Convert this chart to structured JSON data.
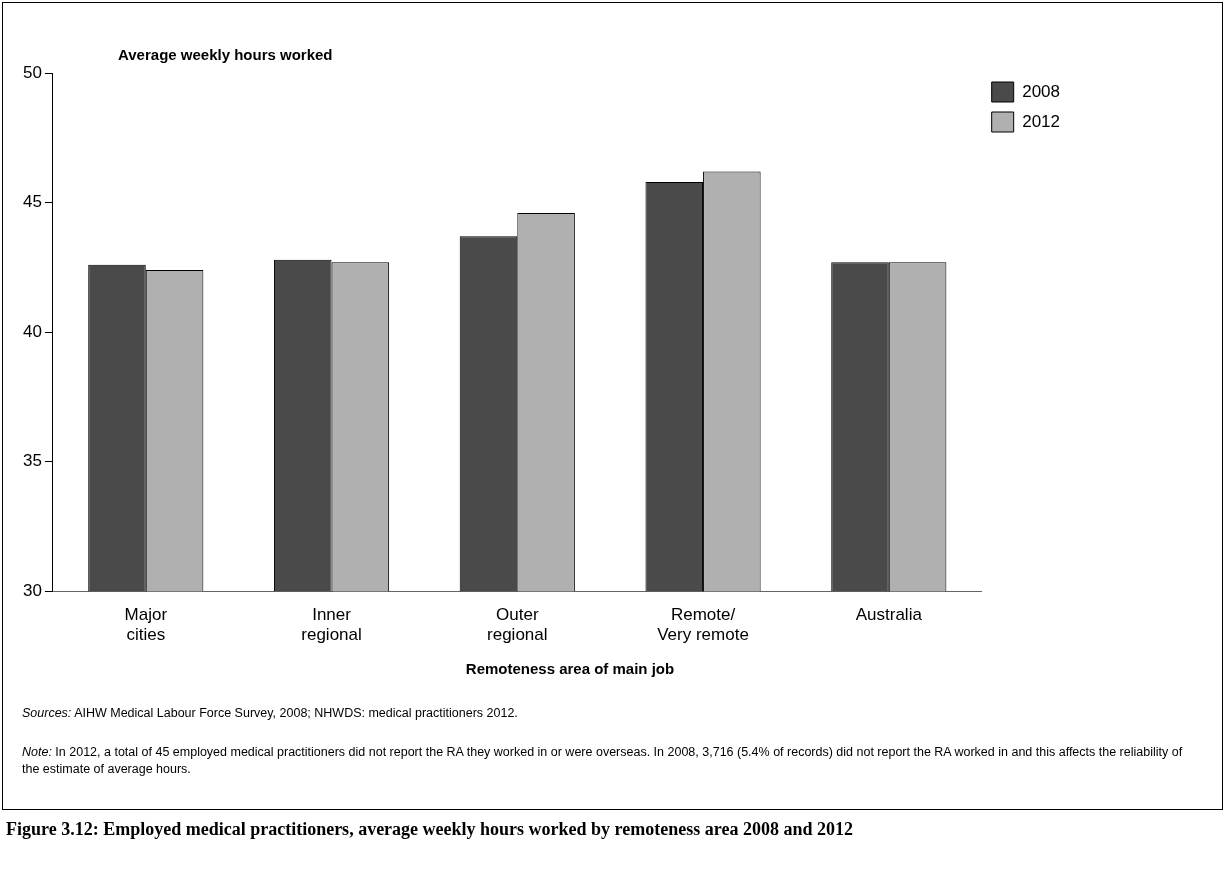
{
  "chart_data": {
    "type": "bar",
    "title": "Figure 3.12: Employed medical practitioners, average weekly hours worked by remoteness area 2008 and 2012",
    "ylabel": "Average weekly hours worked",
    "xlabel": "Remoteness area of main job",
    "categories": [
      "Major cities",
      "Inner regional",
      "Outer regional",
      "Remote/Very remote",
      "Australia"
    ],
    "series": [
      {
        "name": "2008",
        "color": "#4a4a4a",
        "values": [
          42.6,
          42.8,
          43.7,
          45.8,
          42.7
        ]
      },
      {
        "name": "2012",
        "color": "#b0b0b0",
        "values": [
          42.4,
          42.7,
          44.6,
          46.2,
          42.7
        ]
      }
    ],
    "ylim": [
      30,
      50
    ],
    "yticks": [
      30,
      35,
      40,
      45,
      50
    ],
    "grid": false,
    "legend": "top right",
    "annotations": [
      "Sources: AIHW Medical Labour Force Survey, 2008; NHWDS: medical practitioners 2012.",
      "Note: In 2012, a total of 45 employed medical practitioners did not report the RA they worked in or were overseas. In 2008, 3,716 (5.4% of records) did not report the RA worked in and this affects the reliability of the estimate of average hours."
    ]
  }
}
